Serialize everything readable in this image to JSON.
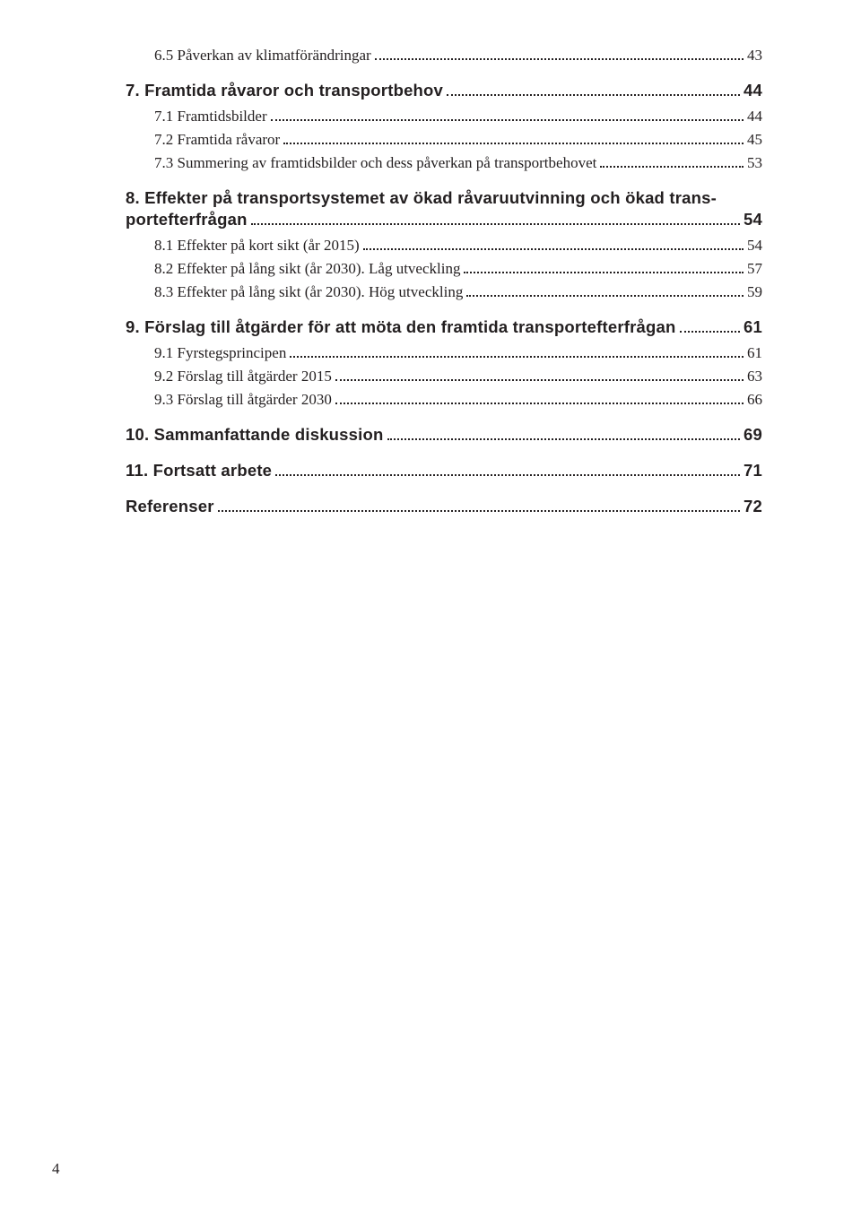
{
  "toc": {
    "entries": [
      {
        "level": 1,
        "label": "6.5 Påverkan av klimatförändringar",
        "page": "43"
      },
      {
        "level": 0,
        "label": "7.  Framtida råvaror och transportbehov",
        "page": "44"
      },
      {
        "level": 1,
        "label": "7.1  Framtidsbilder",
        "page": "44"
      },
      {
        "level": 1,
        "label": "7.2  Framtida råvaror",
        "page": "45"
      },
      {
        "level": 1,
        "label": "7.3  Summering av framtidsbilder och dess påverkan på transportbehovet",
        "page": "53"
      },
      {
        "level": 0,
        "wrap": true,
        "label_line1": "8.  Effekter på transportsystemet av ökad råvaruutvinning och ökad trans-",
        "label_line2": "portefterfrågan",
        "page": "54"
      },
      {
        "level": 1,
        "label": "8.1  Effekter på kort sikt (år 2015)",
        "page": "54"
      },
      {
        "level": 1,
        "label": "8.2 Effekter på lång sikt (år 2030). Låg utveckling",
        "page": "57"
      },
      {
        "level": 1,
        "label": "8.3 Effekter på lång sikt (år 2030). Hög utveckling",
        "page": "59"
      },
      {
        "level": 0,
        "label": "9.  Förslag till åtgärder för att möta den framtida transportefterfrågan",
        "page": "61"
      },
      {
        "level": 1,
        "label": "9.1  Fyrstegsprincipen",
        "page": "61"
      },
      {
        "level": 1,
        "label": "9.2 Förslag till åtgärder 2015",
        "page": "63"
      },
      {
        "level": 1,
        "label": "9.3 Förslag till åtgärder 2030",
        "page": "66"
      },
      {
        "level": 0,
        "label": "10. Sammanfattande diskussion",
        "page": "69"
      },
      {
        "level": 0,
        "label": "11.  Fortsatt arbete",
        "page": "71"
      },
      {
        "level": 0,
        "label": "Referenser",
        "page": "72"
      }
    ]
  },
  "pageNumber": "4"
}
